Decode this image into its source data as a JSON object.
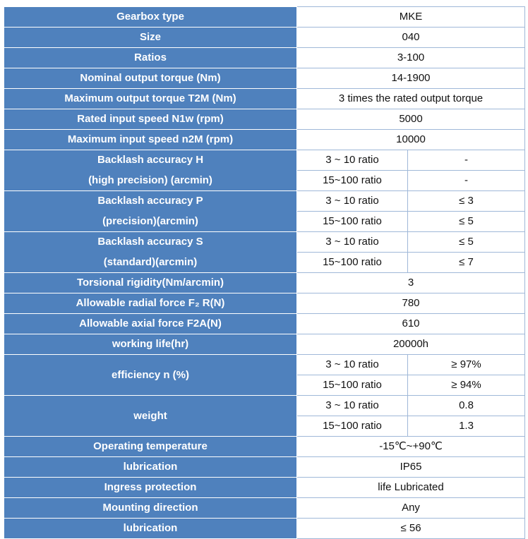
{
  "table": {
    "rows": [
      {
        "label": "Gearbox type",
        "value": "MKE"
      },
      {
        "label": "Size",
        "value": "040"
      },
      {
        "label": "Ratios",
        "value": "3-100"
      },
      {
        "label": "Nominal output torque (Nm)",
        "value": "14-1900"
      },
      {
        "label": "Maximum output torque T2M (Nm)",
        "value": "3 times the rated output torque"
      },
      {
        "label": "Rated input speed N1w    (rpm)",
        "value": "5000"
      },
      {
        "label": "Maximum input speed n2M (rpm)",
        "value": "10000"
      },
      {
        "label": [
          "Backlash accuracy    H",
          "(high precision)    (arcmin)"
        ],
        "sub": [
          [
            "3 ~ 10 ratio",
            "-"
          ],
          [
            "15~100 ratio",
            "-"
          ]
        ]
      },
      {
        "label": [
          "Backlash accuracy    P",
          "(precision)(arcmin)"
        ],
        "sub": [
          [
            "3 ~ 10 ratio",
            "≤ 3"
          ],
          [
            "15~100 ratio",
            "≤ 5"
          ]
        ]
      },
      {
        "label": [
          "Backlash accuracy    S",
          "(standard)(arcmin)"
        ],
        "sub": [
          [
            "3 ~ 10 ratio",
            "≤ 5"
          ],
          [
            "15~100 ratio",
            "≤ 7"
          ]
        ]
      },
      {
        "label": "Torsional rigidity(Nm/arcmin)",
        "value": "3"
      },
      {
        "label": "Allowable radial force F₂   R(N)",
        "value": "780"
      },
      {
        "label": "Allowable axial force F2A(N)",
        "value": "610"
      },
      {
        "label": "working life(hr)",
        "value": "20000h"
      },
      {
        "label": "efficiency n (%)",
        "sub": [
          [
            "3 ~ 10 ratio",
            "≥ 97%"
          ],
          [
            "15~100 ratio",
            "≥ 94%"
          ]
        ]
      },
      {
        "label": "weight",
        "sub": [
          [
            "3 ~ 10 ratio",
            "0.8"
          ],
          [
            "15~100 ratio",
            "1.3"
          ]
        ]
      },
      {
        "label": "Operating temperature",
        "value": "-15℃~+90℃"
      },
      {
        "label": "lubrication",
        "value": "IP65"
      },
      {
        "label": "Ingress protection",
        "value": "life Lubricated"
      },
      {
        "label": "Mounting direction",
        "value": "Any"
      },
      {
        "label": "lubrication",
        "value": "≤ 56"
      }
    ]
  }
}
